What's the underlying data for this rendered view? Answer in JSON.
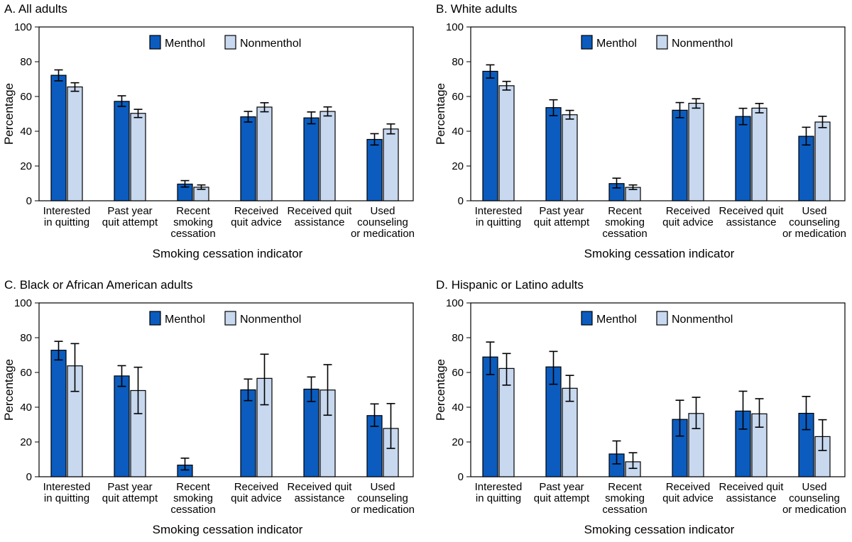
{
  "colors": {
    "menthol": "#0b5cbe",
    "nonmenthol": "#c7d8ef",
    "stroke": "#000000"
  },
  "legend": {
    "menthol": "Menthol",
    "nonmenthol": "Nonmenthol"
  },
  "chart_data": [
    {
      "type": "bar",
      "title": "A. All adults",
      "xlabel": "Smoking cessation indicator",
      "ylabel": "Percentage",
      "ylim": [
        0,
        100
      ],
      "yticks": [
        "0",
        "20",
        "40",
        "60",
        "80",
        "100"
      ],
      "categories": [
        [
          "Interested",
          "in quitting"
        ],
        [
          "Past year",
          "quit attempt"
        ],
        [
          "Recent",
          "smoking",
          "cessation"
        ],
        [
          "Received",
          "quit advice"
        ],
        [
          "Received quit",
          "assistance"
        ],
        [
          "Used",
          "counseling",
          "or medication"
        ]
      ],
      "series": [
        {
          "name": "Menthol",
          "values": [
            72.2,
            57.2,
            9.6,
            48.3,
            47.7,
            35.3
          ],
          "ci_low": [
            69.0,
            54.3,
            7.9,
            45.3,
            44.3,
            32.1
          ],
          "ci_high": [
            75.3,
            60.4,
            11.6,
            51.4,
            51.1,
            38.6
          ]
        },
        {
          "name": "Nonmenthol",
          "values": [
            65.5,
            50.3,
            7.8,
            53.9,
            51.4,
            41.3
          ],
          "ci_low": [
            63.0,
            47.9,
            6.6,
            51.2,
            48.8,
            38.5
          ],
          "ci_high": [
            67.9,
            52.6,
            9.1,
            56.4,
            54.0,
            44.2
          ]
        }
      ]
    },
    {
      "type": "bar",
      "title": "B. White adults",
      "xlabel": "Smoking cessation indicator",
      "ylabel": "Percentage",
      "ylim": [
        0,
        100
      ],
      "yticks": [
        "0",
        "20",
        "40",
        "60",
        "80",
        "100"
      ],
      "categories": [
        [
          "Interested",
          "in quitting"
        ],
        [
          "Past year",
          "quit attempt"
        ],
        [
          "Recent",
          "smoking",
          "cessation"
        ],
        [
          "Received",
          "quit advice"
        ],
        [
          "Received quit",
          "assistance"
        ],
        [
          "Used",
          "counseling",
          "or medication"
        ]
      ],
      "series": [
        {
          "name": "Menthol",
          "values": [
            74.5,
            53.6,
            9.9,
            52.1,
            48.5,
            37.1
          ],
          "ci_low": [
            70.6,
            49.0,
            7.4,
            47.8,
            43.8,
            32.1
          ],
          "ci_high": [
            78.2,
            58.1,
            13.0,
            56.5,
            53.2,
            42.3
          ]
        },
        {
          "name": "Nonmenthol",
          "values": [
            66.2,
            49.5,
            7.7,
            56.1,
            53.3,
            45.3
          ],
          "ci_low": [
            63.7,
            47.0,
            6.5,
            53.3,
            50.6,
            42.1
          ],
          "ci_high": [
            68.7,
            52.0,
            9.1,
            58.7,
            56.0,
            48.6
          ]
        }
      ]
    },
    {
      "type": "bar",
      "title": "C. Black or African American adults",
      "xlabel": "Smoking cessation indicator",
      "ylabel": "Percentage",
      "ylim": [
        0,
        100
      ],
      "yticks": [
        "0",
        "20",
        "40",
        "60",
        "80",
        "100"
      ],
      "categories": [
        [
          "Interested",
          "in quitting"
        ],
        [
          "Past year",
          "quit attempt"
        ],
        [
          "Recent",
          "smoking",
          "cessation"
        ],
        [
          "Received",
          "quit advice"
        ],
        [
          "Received quit",
          "assistance"
        ],
        [
          "Used",
          "counseling",
          "or medication"
        ]
      ],
      "series": [
        {
          "name": "Menthol",
          "values": [
            72.8,
            58.0,
            6.7,
            50.0,
            50.4,
            35.2
          ],
          "ci_low": [
            67.2,
            52.0,
            3.9,
            43.8,
            43.3,
            29.0
          ],
          "ci_high": [
            77.9,
            63.9,
            10.7,
            56.2,
            57.4,
            41.9
          ]
        },
        {
          "name": "Nonmenthol",
          "values": [
            63.8,
            49.6,
            null,
            56.6,
            49.9,
            27.8
          ],
          "ci_low": [
            49.1,
            36.3,
            null,
            41.4,
            35.4,
            16.3
          ],
          "ci_high": [
            76.6,
            63.0,
            null,
            70.5,
            64.5,
            42.1
          ]
        }
      ]
    },
    {
      "type": "bar",
      "title": "D. Hispanic or Latino adults",
      "xlabel": "Smoking cessation indicator",
      "ylabel": "Percentage",
      "ylim": [
        0,
        100
      ],
      "yticks": [
        "0",
        "20",
        "40",
        "60",
        "80",
        "100"
      ],
      "categories": [
        [
          "Interested",
          "in quitting"
        ],
        [
          "Past year",
          "quit attempt"
        ],
        [
          "Recent",
          "smoking",
          "cessation"
        ],
        [
          "Received",
          "quit advice"
        ],
        [
          "Received quit",
          "assistance"
        ],
        [
          "Used",
          "counseling",
          "or medication"
        ]
      ],
      "series": [
        {
          "name": "Menthol",
          "values": [
            68.9,
            63.2,
            13.1,
            33.0,
            37.8,
            36.5
          ],
          "ci_low": [
            58.8,
            53.2,
            7.4,
            23.4,
            27.4,
            27.1
          ],
          "ci_high": [
            77.5,
            72.1,
            20.6,
            44.0,
            49.2,
            46.2
          ]
        },
        {
          "name": "Nonmenthol",
          "values": [
            62.3,
            50.9,
            8.6,
            36.4,
            36.2,
            23.1
          ],
          "ci_low": [
            52.7,
            43.4,
            4.8,
            27.7,
            28.5,
            15.1
          ],
          "ci_high": [
            70.9,
            58.3,
            13.8,
            45.7,
            44.9,
            32.8
          ]
        }
      ]
    }
  ]
}
